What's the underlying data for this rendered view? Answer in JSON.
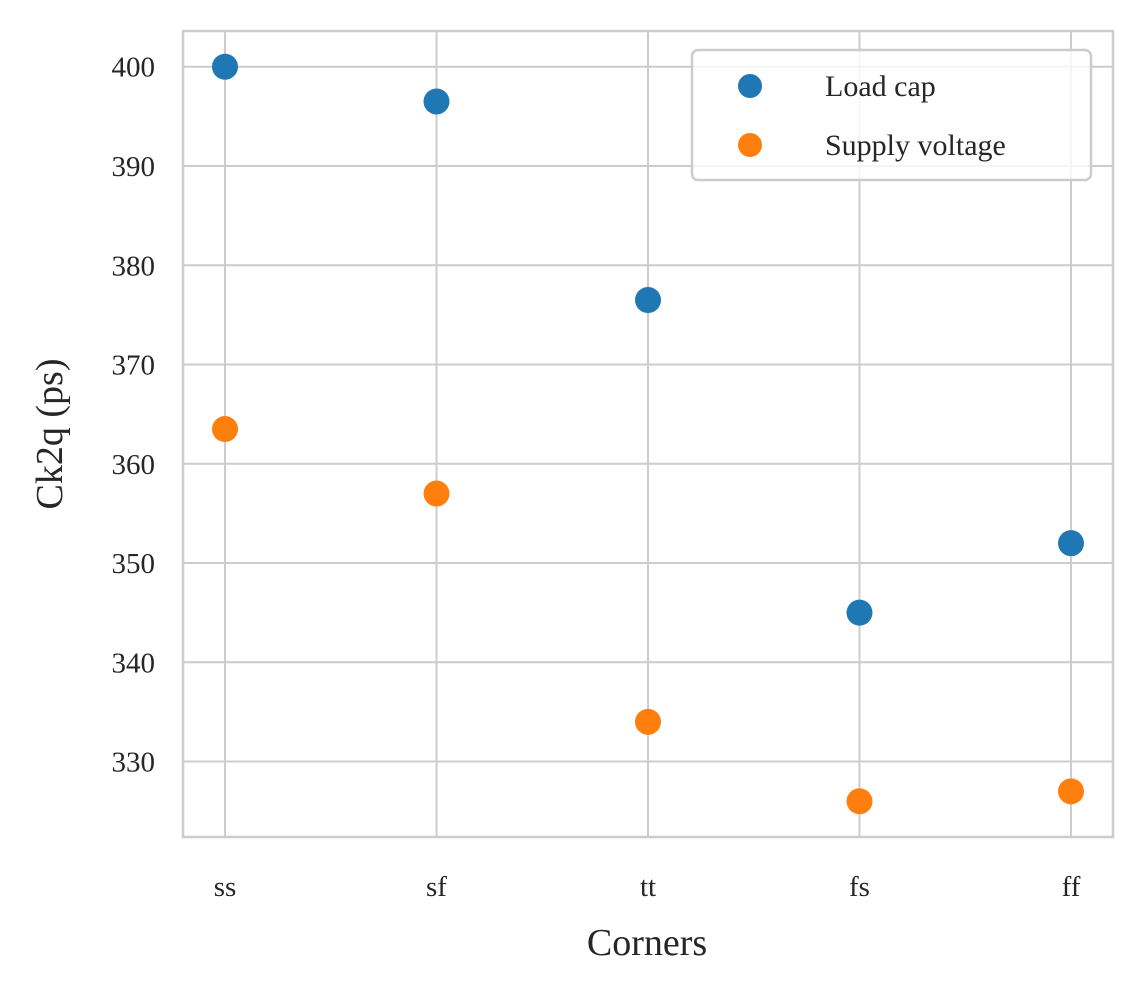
{
  "chart_data": {
    "type": "scatter",
    "title": "",
    "xlabel": "Corners",
    "ylabel": "Ck2q (ps)",
    "categories": [
      "ss",
      "sf",
      "tt",
      "fs",
      "ff"
    ],
    "y_ticks": [
      330,
      340,
      350,
      360,
      370,
      380,
      390,
      400
    ],
    "ylim": [
      322.4,
      403.6
    ],
    "grid": true,
    "legend_position": "top-right",
    "series": [
      {
        "name": "Load cap",
        "color": "#1f77b4",
        "values": [
          400,
          396.5,
          376.5,
          345,
          352
        ]
      },
      {
        "name": "Supply voltage",
        "color": "#ff7f0e",
        "values": [
          363.5,
          357,
          334,
          326,
          327
        ]
      }
    ]
  }
}
